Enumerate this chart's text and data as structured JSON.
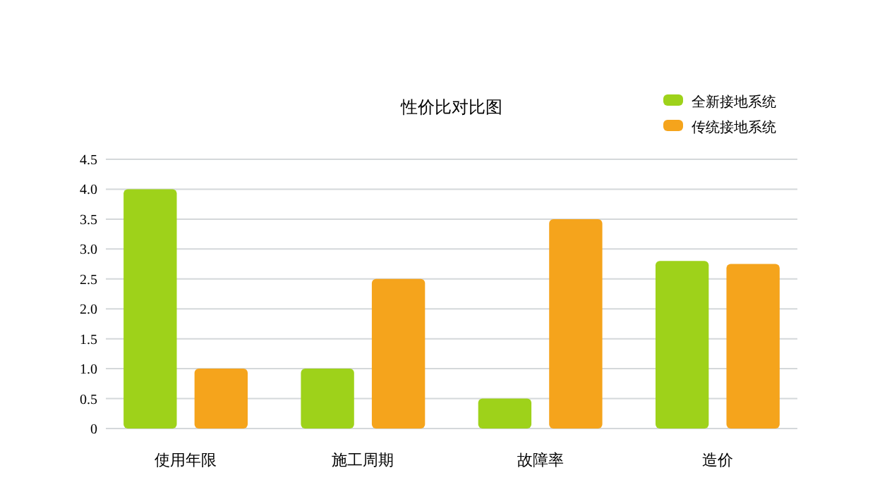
{
  "chart_data": {
    "type": "bar",
    "title": "性价比对比图",
    "categories": [
      "使用年限",
      "施工周期",
      "故障率",
      "造价"
    ],
    "series": [
      {
        "name": "全新接地系统",
        "color": "#9ed21a",
        "values": [
          4.0,
          1.0,
          0.5,
          2.8
        ]
      },
      {
        "name": "传统接地系统",
        "color": "#f5a41c",
        "values": [
          1.0,
          2.5,
          3.5,
          2.75
        ]
      }
    ],
    "ylim": [
      0,
      4.5
    ],
    "yticks": [
      {
        "value": 0,
        "label": "0"
      },
      {
        "value": 0.5,
        "label": "0.5"
      },
      {
        "value": 1,
        "label": "1.0"
      },
      {
        "value": 1.5,
        "label": "1.5"
      },
      {
        "value": 2,
        "label": "2.0"
      },
      {
        "value": 2.5,
        "label": "2.5"
      },
      {
        "value": 3,
        "label": "3.0"
      },
      {
        "value": 3.5,
        "label": "3.5"
      },
      {
        "value": 4,
        "label": "4.0"
      },
      {
        "value": 4.5,
        "label": "4.5"
      }
    ],
    "grid": "y",
    "legend": "top right"
  }
}
